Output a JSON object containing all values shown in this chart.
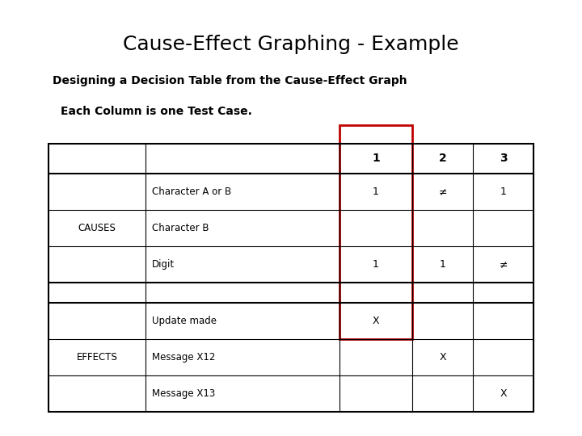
{
  "title": "Cause-Effect Graphing - Example",
  "subtitle": "Designing a Decision Table from the Cause-Effect Graph",
  "highlight_text": "Each Column is one Test Case.",
  "background_color": "#ffffff",
  "title_fontsize": 18,
  "subtitle_fontsize": 10,
  "highlight_fontsize": 10,
  "row_labels_causes": [
    "Character A or B",
    "Character B",
    "Digit"
  ],
  "row_labels_effects": [
    "Update made",
    "Message X12",
    "Message X13"
  ],
  "col_headers": [
    "1",
    "2",
    "3"
  ],
  "causes_label": "CAUSES",
  "effects_label": "EFFECTS",
  "cell_data_causes": [
    [
      "1",
      "≠",
      "1"
    ],
    [
      "",
      "",
      ""
    ],
    [
      "1",
      "1",
      "≠"
    ]
  ],
  "cell_data_effects": [
    [
      "X",
      "",
      ""
    ],
    [
      "",
      "X",
      ""
    ],
    [
      "",
      "",
      "X"
    ]
  ],
  "highlight_color": "#c00000",
  "table_line_color": "#000000"
}
